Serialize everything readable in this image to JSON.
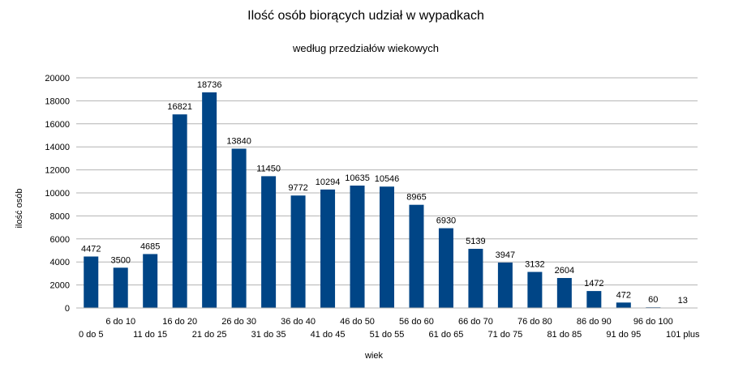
{
  "chart_data": {
    "type": "bar",
    "title": "Ilość osób biorących udział w wypadkach",
    "subtitle": "według przedziałów wiekowych",
    "xlabel": "wiek",
    "ylabel": "ilość osób",
    "ylim": [
      0,
      20000
    ],
    "yticks": [
      0,
      2000,
      4000,
      6000,
      8000,
      10000,
      12000,
      14000,
      16000,
      18000,
      20000
    ],
    "grid": true,
    "bar_color": "#004586",
    "categories": [
      "0 do 5",
      "6 do 10",
      "11 do 15",
      "16 do 20",
      "21 do 25",
      "26 do 30",
      "31 do 35",
      "36 do 40",
      "41 do 45",
      "46 do 50",
      "51 do 55",
      "56 do 60",
      "61 do 65",
      "66 do 70",
      "71 do 75",
      "76 do 80",
      "81 do 85",
      "86 do 90",
      "91 do 95",
      "96 do 100",
      "101 plus"
    ],
    "values": [
      4472,
      3500,
      4685,
      16821,
      18736,
      13840,
      11450,
      9772,
      10294,
      10635,
      10546,
      8965,
      6930,
      5139,
      3947,
      3132,
      2604,
      1472,
      472,
      60,
      13
    ]
  }
}
